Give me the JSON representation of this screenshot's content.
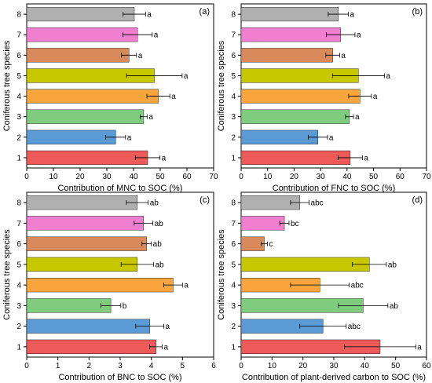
{
  "figure": {
    "ylabel": "Coniferous tree species"
  },
  "chart_data": [
    {
      "type": "bar",
      "orientation": "horizontal",
      "panel": "(a)",
      "xlabel": "Contribution of MNC to SOC (%)",
      "ylabel": "Coniferous tree species",
      "xlim": [
        0,
        70
      ],
      "xticks": [
        0,
        10,
        20,
        30,
        40,
        50,
        60,
        70
      ],
      "categories": [
        "1",
        "2",
        "3",
        "4",
        "5",
        "6",
        "7",
        "8"
      ],
      "values": [
        45.3,
        33.3,
        43.8,
        49.3,
        47.8,
        38.3,
        41.5,
        40.3
      ],
      "errors": [
        4.6,
        3.7,
        1.3,
        4.3,
        10.4,
        2.8,
        5.5,
        4.2
      ],
      "labels": [
        "a",
        "a",
        "a",
        "a",
        "a",
        "a",
        "a",
        "a"
      ]
    },
    {
      "type": "bar",
      "orientation": "horizontal",
      "panel": "(b)",
      "xlabel": "Contribution of FNC to SOC (%)",
      "ylabel": "Coniferous tree species",
      "xlim": [
        0,
        70
      ],
      "xticks": [
        0,
        10,
        20,
        30,
        40,
        50,
        60,
        70
      ],
      "categories": [
        "1",
        "2",
        "3",
        "4",
        "5",
        "6",
        "7",
        "8"
      ],
      "values": [
        41.2,
        29.0,
        40.9,
        44.9,
        44.3,
        34.6,
        37.6,
        36.7
      ],
      "errors": [
        4.6,
        3.6,
        1.5,
        4.3,
        9.8,
        2.6,
        5.4,
        3.8
      ],
      "labels": [
        "a",
        "a",
        "a",
        "a",
        "a",
        "a",
        "a",
        "a"
      ]
    },
    {
      "type": "bar",
      "orientation": "horizontal",
      "panel": "(c)",
      "xlabel": "Contribution of BNC to SOC (%)",
      "ylabel": "Coniferous tree species",
      "xlim": [
        0,
        6
      ],
      "xticks": [
        0,
        1,
        2,
        3,
        4,
        5,
        6
      ],
      "categories": [
        "1",
        "2",
        "3",
        "4",
        "5",
        "6",
        "7",
        "8"
      ],
      "values": [
        4.15,
        3.95,
        2.7,
        4.7,
        3.55,
        3.85,
        3.75,
        3.55
      ],
      "errors": [
        0.2,
        0.45,
        0.32,
        0.3,
        0.52,
        0.15,
        0.3,
        0.35
      ],
      "labels": [
        "a",
        "a",
        "b",
        "a",
        "ab",
        "ab",
        "ab",
        "ab"
      ]
    },
    {
      "type": "bar",
      "orientation": "horizontal",
      "panel": "(d)",
      "xlabel": "Contribution of plant-derived carbon to SOC (%)",
      "ylabel": "Coniferous tree species",
      "xlim": [
        0,
        60
      ],
      "xticks": [
        0,
        10,
        20,
        30,
        40,
        50,
        60
      ],
      "categories": [
        "1",
        "2",
        "3",
        "4",
        "5",
        "6",
        "7",
        "8"
      ],
      "values": [
        45.0,
        26.5,
        39.5,
        25.5,
        41.5,
        7.5,
        14.0,
        19.0
      ],
      "errors": [
        11.5,
        7.5,
        8.0,
        9.5,
        5.5,
        1.0,
        1.5,
        3.0
      ],
      "labels": [
        "a",
        "abc",
        "ab",
        "abc",
        "ab",
        "c",
        "bc",
        "abc"
      ]
    }
  ],
  "colors": [
    "#ec5a5a",
    "#5a9bd5",
    "#7fcc7f",
    "#f9a53e",
    "#c8c800",
    "#d98a5a",
    "#f07fd0",
    "#b0b0b0"
  ]
}
